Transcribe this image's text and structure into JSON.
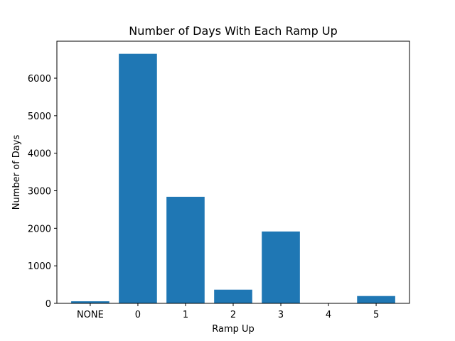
{
  "chart_data": {
    "type": "bar",
    "title": "Number of Days With Each Ramp Up",
    "xlabel": "Ramp Up",
    "ylabel": "Number of Days",
    "categories": [
      "NONE",
      "0",
      "1",
      "2",
      "3",
      "4",
      "5"
    ],
    "values": [
      55,
      6650,
      2840,
      365,
      1915,
      0,
      195
    ],
    "ylim": [
      0,
      6985
    ],
    "yticks": [
      0,
      1000,
      2000,
      3000,
      4000,
      5000,
      6000
    ],
    "grid": false,
    "bar_color": "#1f77b4"
  }
}
